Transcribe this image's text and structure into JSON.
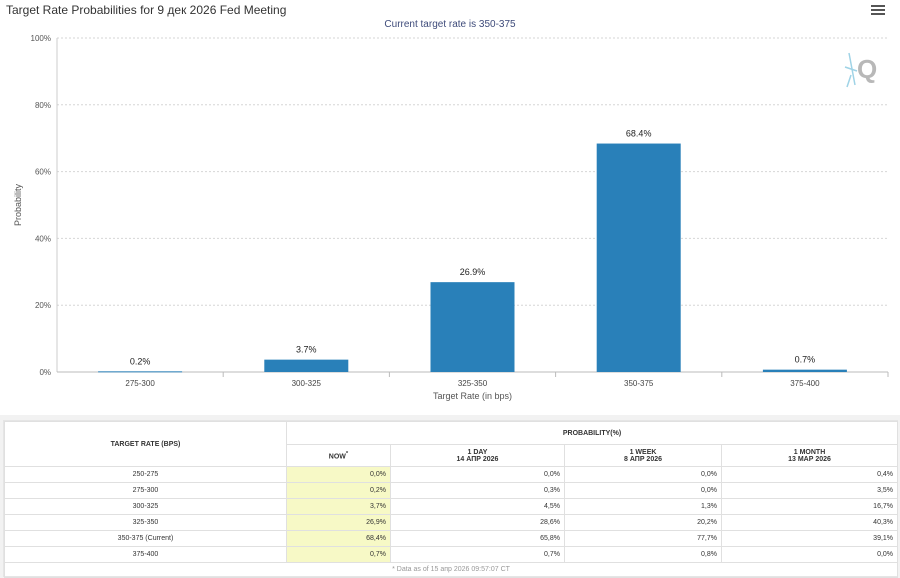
{
  "chart": {
    "title": "Target Rate Probabilities for 9 дек 2026 Fed Meeting",
    "subtitle": "Current target rate is 350-375"
  },
  "chart_data": {
    "type": "bar",
    "title": "Target Rate Probabilities for 9 дек 2026 Fed Meeting",
    "subtitle": "Current target rate is 350-375",
    "xlabel": "Target Rate (in bps)",
    "ylabel": "Probability",
    "categories": [
      "275-300",
      "300-325",
      "325-350",
      "350-375",
      "375-400"
    ],
    "values": [
      0.2,
      3.7,
      26.9,
      68.4,
      0.7
    ],
    "data_labels": [
      "0.2%",
      "3.7%",
      "26.9%",
      "68.4%",
      "0.7%"
    ],
    "ylim": [
      0,
      100
    ],
    "yticks": [
      "0%",
      "20%",
      "40%",
      "60%",
      "80%",
      "100%"
    ],
    "ytick_values": [
      0,
      20,
      40,
      60,
      80,
      100
    ],
    "grid": true,
    "bar_color": "#2980b9"
  },
  "table": {
    "rate_header": "TARGET RATE (BPS)",
    "prob_header": "PROBABILITY(%)",
    "columns": [
      {
        "line1": "NOW",
        "line2": "",
        "star": "*"
      },
      {
        "line1": "1 DAY",
        "line2": "14 АПР 2026",
        "star": ""
      },
      {
        "line1": "1 WEEK",
        "line2": "8 АПР 2026",
        "star": ""
      },
      {
        "line1": "1 MONTH",
        "line2": "13 МАР 2026",
        "star": ""
      }
    ],
    "rows": [
      {
        "rate": "250-275",
        "values": [
          "0,0%",
          "0,0%",
          "0,0%",
          "0,4%"
        ]
      },
      {
        "rate": "275-300",
        "values": [
          "0,2%",
          "0,3%",
          "0,0%",
          "3,5%"
        ]
      },
      {
        "rate": "300-325",
        "values": [
          "3,7%",
          "4,5%",
          "1,3%",
          "16,7%"
        ]
      },
      {
        "rate": "325-350",
        "values": [
          "26,9%",
          "28,6%",
          "20,2%",
          "40,3%"
        ]
      },
      {
        "rate": "350-375 (Current)",
        "values": [
          "68,4%",
          "65,8%",
          "77,7%",
          "39,1%"
        ]
      },
      {
        "rate": "375-400",
        "values": [
          "0,7%",
          "0,7%",
          "0,8%",
          "0,0%"
        ]
      }
    ],
    "footnote": "* Data as of 15 апр 2026 09:57:07 CT"
  },
  "icons": {
    "menu": "hamburger-menu-icon",
    "watermark": "q-logo-icon"
  },
  "colors": {
    "bar": "#2980b9",
    "now_highlight": "#f7f9c6",
    "subtitle": "#3e4b7a"
  }
}
